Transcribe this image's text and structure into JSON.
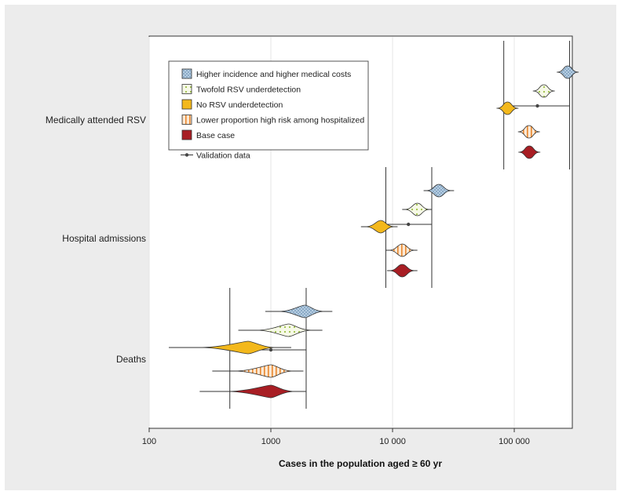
{
  "chart_data": {
    "type": "violin",
    "xscale": "log",
    "xlim": [
      100,
      300000
    ],
    "xlabel": "Cases in the population aged ≥ 60 yr",
    "xticks": [
      {
        "value": 100,
        "label": "100"
      },
      {
        "value": 1000,
        "label": "1000"
      },
      {
        "value": 10000,
        "label": "10 000"
      },
      {
        "value": 100000,
        "label": "100 000"
      }
    ],
    "categories": [
      {
        "name": "Medically attended RSV",
        "validation": {
          "point": 155000,
          "low": 82000,
          "high": 285000
        },
        "series": [
          {
            "scenario": "higher_incidence",
            "peak": 275000,
            "low": 230000,
            "high": 330000
          },
          {
            "scenario": "twofold",
            "peak": 175000,
            "low": 145000,
            "high": 205000
          },
          {
            "scenario": "no_under",
            "peak": 88000,
            "low": 78000,
            "high": 105000
          },
          {
            "scenario": "lower_prop",
            "peak": 132000,
            "low": 118000,
            "high": 148000
          },
          {
            "scenario": "base",
            "peak": 133000,
            "low": 120000,
            "high": 149000
          }
        ]
      },
      {
        "name": "Hospital admissions",
        "validation": {
          "point": 13500,
          "low": 8800,
          "high": 21000
        },
        "series": [
          {
            "scenario": "higher_incidence",
            "peak": 24000,
            "low": 18000,
            "high": 32000
          },
          {
            "scenario": "twofold",
            "peak": 16000,
            "low": 12000,
            "high": 21000
          },
          {
            "scenario": "no_under",
            "peak": 8000,
            "low": 5500,
            "high": 11000
          },
          {
            "scenario": "lower_prop",
            "peak": 12000,
            "low": 8800,
            "high": 16000
          },
          {
            "scenario": "base",
            "peak": 12000,
            "low": 9000,
            "high": 16000
          }
        ]
      },
      {
        "name": "Deaths",
        "validation": {
          "point": 1000,
          "low": 460,
          "high": 1950
        },
        "series": [
          {
            "scenario": "higher_incidence",
            "peak": 1900,
            "low": 900,
            "high": 3200
          },
          {
            "scenario": "twofold",
            "peak": 1400,
            "low": 540,
            "high": 2650
          },
          {
            "scenario": "no_under",
            "peak": 650,
            "low": 145,
            "high": 1470
          },
          {
            "scenario": "lower_prop",
            "peak": 1000,
            "low": 330,
            "high": 1850
          },
          {
            "scenario": "base",
            "peak": 1000,
            "low": 260,
            "high": 1950
          }
        ]
      }
    ],
    "legend": {
      "placement": "top-left",
      "entries": [
        {
          "key": "higher_incidence",
          "label": "Higher incidence and higher medical costs",
          "color": "#bcd3e6",
          "pattern": "crosshatch"
        },
        {
          "key": "twofold",
          "label": "Twofold RSV underdetection",
          "color": "#eef3d6",
          "pattern": "dots"
        },
        {
          "key": "no_under",
          "label": "No RSV underdetection",
          "color": "#f3b81c",
          "pattern": "solid"
        },
        {
          "key": "lower_prop",
          "label": "Lower proportion high risk among hospitalized",
          "color": "#f9dfc5",
          "pattern": "vstripes"
        },
        {
          "key": "base",
          "label": "Base case",
          "color": "#a81e24",
          "pattern": "solid"
        }
      ],
      "validation_label": "Validation data"
    }
  }
}
